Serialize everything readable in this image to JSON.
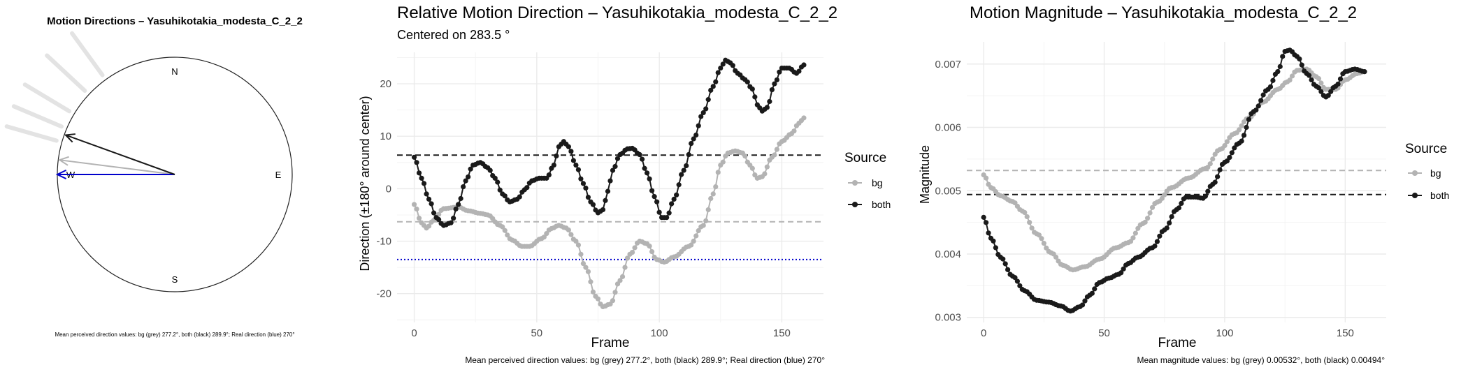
{
  "colors": {
    "bg": "#b3b3b3",
    "both": "#1a1a1a",
    "real": "#0000cc",
    "grid": "#ebebeb",
    "grid_minor": "#f4f4f4"
  },
  "panel1": {
    "title": "Motion Directions – Yasuhikotakia_modesta_C_2_2",
    "compass": {
      "N": "N",
      "E": "E",
      "S": "S",
      "W": "W"
    },
    "caption": "Mean perceived direction values: bg (grey) 277.2°, both (black) 289.9°; Real direction (blue) 270°",
    "arrows": {
      "bg_deg": 277.2,
      "both_deg": 289.9,
      "real_deg": 270
    },
    "fan_deg": [
      286,
      293,
      301,
      313,
      324
    ]
  },
  "panel2": {
    "title": "Relative Motion Direction – Yasuhikotakia_modesta_C_2_2",
    "subtitle": "Centered on  283.5 °",
    "xlabel": "Frame",
    "ylabel": "Direction (±180° around center)",
    "legend_title": "Source",
    "legend": [
      "bg",
      "both"
    ],
    "caption": "Mean perceived direction values: bg (grey) 277.2°, both (black) 289.9°; Real direction (blue) 270°"
  },
  "panel3": {
    "title": "Motion Magnitude – Yasuhikotakia_modesta_C_2_2",
    "xlabel": "Frame",
    "ylabel": "Magnitude",
    "legend_title": "Source",
    "legend": [
      "bg",
      "both"
    ],
    "caption": "Mean magnitude values: bg (grey) 0.00532°, both (black) 0.00494°"
  },
  "chart_data": [
    {
      "type": "line",
      "title": "Relative Motion Direction – Yasuhikotakia_modesta_C_2_2",
      "xlabel": "Frame",
      "ylabel": "Direction (±180° around center)",
      "xlim": [
        -7,
        167
      ],
      "ylim": [
        -25.5,
        26
      ],
      "xticks": [
        0,
        50,
        100,
        150
      ],
      "yticks": [
        -20,
        -10,
        0,
        10,
        20
      ],
      "hlines": [
        {
          "series": "both",
          "y": 6.4,
          "style": "dashed"
        },
        {
          "series": "bg",
          "y": -6.3,
          "style": "dashed"
        },
        {
          "series": "real",
          "y": -13.5,
          "style": "dotted"
        }
      ],
      "series": [
        {
          "name": "bg",
          "points": [
            [
              0,
              -3
            ],
            [
              3,
              -6.5
            ],
            [
              5,
              -7.5
            ],
            [
              8,
              -6
            ],
            [
              12,
              -3.8
            ],
            [
              18,
              -3.5
            ],
            [
              22,
              -4.2
            ],
            [
              27,
              -4.7
            ],
            [
              30,
              -5
            ],
            [
              35,
              -7
            ],
            [
              40,
              -9.8
            ],
            [
              44,
              -11
            ],
            [
              47,
              -11
            ],
            [
              52,
              -9.5
            ],
            [
              56,
              -7.6
            ],
            [
              59,
              -7
            ],
            [
              62,
              -7.5
            ],
            [
              66,
              -10
            ],
            [
              70,
              -15
            ],
            [
              74,
              -20.5
            ],
            [
              77,
              -22.5
            ],
            [
              80,
              -22
            ],
            [
              84,
              -17.5
            ],
            [
              88,
              -12.5
            ],
            [
              92,
              -10
            ],
            [
              95,
              -10.5
            ],
            [
              99,
              -13.5
            ],
            [
              102,
              -14
            ],
            [
              106,
              -13
            ],
            [
              112,
              -11
            ],
            [
              118,
              -7
            ],
            [
              122,
              -1
            ],
            [
              125,
              4.5
            ],
            [
              128,
              6.8
            ],
            [
              131,
              7.2
            ],
            [
              134,
              6.8
            ],
            [
              137,
              4.5
            ],
            [
              140,
              2
            ],
            [
              142,
              2.3
            ],
            [
              146,
              6
            ],
            [
              150,
              9
            ],
            [
              154,
              10.5
            ],
            [
              157,
              12.5
            ],
            [
              159,
              13.5
            ]
          ]
        },
        {
          "name": "both",
          "points": [
            [
              0,
              6
            ],
            [
              3,
              2
            ],
            [
              6,
              -2
            ],
            [
              9,
              -5.5
            ],
            [
              12,
              -7
            ],
            [
              15,
              -6.5
            ],
            [
              18,
              -3
            ],
            [
              21,
              1.5
            ],
            [
              24,
              4.5
            ],
            [
              27,
              5
            ],
            [
              30,
              4
            ],
            [
              33,
              2
            ],
            [
              36,
              -1
            ],
            [
              39,
              -2.5
            ],
            [
              42,
              -2
            ],
            [
              45,
              -0.2
            ],
            [
              48,
              1.5
            ],
            [
              51,
              2
            ],
            [
              54,
              2
            ],
            [
              57,
              4.5
            ],
            [
              59,
              8
            ],
            [
              61,
              9
            ],
            [
              63,
              8
            ],
            [
              66,
              4.5
            ],
            [
              69,
              1
            ],
            [
              72,
              -2.5
            ],
            [
              75,
              -4.6
            ],
            [
              77,
              -4
            ],
            [
              79,
              -0.5
            ],
            [
              81,
              3.5
            ],
            [
              84,
              6.5
            ],
            [
              87,
              7.6
            ],
            [
              89,
              7.7
            ],
            [
              92,
              6.5
            ],
            [
              95,
              3
            ],
            [
              98,
              -1.5
            ],
            [
              101,
              -5.5
            ],
            [
              103,
              -5.5
            ],
            [
              106,
              -2
            ],
            [
              110,
              3.5
            ],
            [
              114,
              9.5
            ],
            [
              118,
              14.5
            ],
            [
              122,
              19.5
            ],
            [
              125,
              23
            ],
            [
              127,
              24.5
            ],
            [
              129,
              24
            ],
            [
              132,
              22
            ],
            [
              135,
              20.8
            ],
            [
              138,
              19
            ],
            [
              140,
              16
            ],
            [
              142,
              14.8
            ],
            [
              144,
              15.5
            ],
            [
              147,
              20
            ],
            [
              150,
              23
            ],
            [
              153,
              23
            ],
            [
              156,
              22
            ],
            [
              159,
              23.6
            ]
          ]
        }
      ]
    },
    {
      "type": "line",
      "title": "Motion Magnitude – Yasuhikotakia_modesta_C_2_2",
      "xlabel": "Frame",
      "ylabel": "Magnitude",
      "xlim": [
        -7,
        167
      ],
      "ylim": [
        0.00292,
        0.00735
      ],
      "xticks": [
        0,
        50,
        100,
        150
      ],
      "yticks": [
        0.003,
        0.004,
        0.005,
        0.006,
        0.007
      ],
      "hlines": [
        {
          "series": "bg",
          "y": 0.00532,
          "style": "dashed"
        },
        {
          "series": "both",
          "y": 0.00494,
          "style": "dashed"
        }
      ],
      "series": [
        {
          "name": "bg",
          "points": [
            [
              0,
              0.00525
            ],
            [
              3,
              0.00505
            ],
            [
              7,
              0.00492
            ],
            [
              12,
              0.00483
            ],
            [
              16,
              0.00468
            ],
            [
              22,
              0.00432
            ],
            [
              28,
              0.00402
            ],
            [
              33,
              0.00382
            ],
            [
              37,
              0.00375
            ],
            [
              42,
              0.0038
            ],
            [
              48,
              0.00392
            ],
            [
              55,
              0.0041
            ],
            [
              60,
              0.00418
            ],
            [
              66,
              0.00448
            ],
            [
              72,
              0.00482
            ],
            [
              78,
              0.00505
            ],
            [
              85,
              0.0052
            ],
            [
              92,
              0.00535
            ],
            [
              98,
              0.00565
            ],
            [
              104,
              0.0059
            ],
            [
              110,
              0.00615
            ],
            [
              116,
              0.0064
            ],
            [
              122,
              0.0066
            ],
            [
              126,
              0.00672
            ],
            [
              130,
              0.0069
            ],
            [
              134,
              0.00692
            ],
            [
              138,
              0.0068
            ],
            [
              142,
              0.0066
            ],
            [
              146,
              0.0066
            ],
            [
              150,
              0.00675
            ],
            [
              155,
              0.00685
            ],
            [
              158,
              0.00688
            ]
          ]
        },
        {
          "name": "both",
          "points": [
            [
              0,
              0.00458
            ],
            [
              3,
              0.00425
            ],
            [
              7,
              0.00395
            ],
            [
              12,
              0.00365
            ],
            [
              17,
              0.00342
            ],
            [
              22,
              0.00327
            ],
            [
              27,
              0.00324
            ],
            [
              32,
              0.00318
            ],
            [
              36,
              0.0031
            ],
            [
              40,
              0.00317
            ],
            [
              44,
              0.00335
            ],
            [
              48,
              0.00355
            ],
            [
              52,
              0.00362
            ],
            [
              56,
              0.00368
            ],
            [
              60,
              0.00385
            ],
            [
              64,
              0.00395
            ],
            [
              70,
              0.0041
            ],
            [
              75,
              0.00438
            ],
            [
              80,
              0.0047
            ],
            [
              84,
              0.0049
            ],
            [
              88,
              0.0049
            ],
            [
              91,
              0.00488
            ],
            [
              95,
              0.0051
            ],
            [
              100,
              0.00545
            ],
            [
              106,
              0.00575
            ],
            [
              112,
              0.00625
            ],
            [
              118,
              0.0066
            ],
            [
              122,
              0.00688
            ],
            [
              125,
              0.0072
            ],
            [
              127,
              0.00722
            ],
            [
              130,
              0.00712
            ],
            [
              134,
              0.00685
            ],
            [
              138,
              0.00665
            ],
            [
              142,
              0.00648
            ],
            [
              146,
              0.00665
            ],
            [
              150,
              0.00688
            ],
            [
              154,
              0.00692
            ],
            [
              158,
              0.00688
            ]
          ]
        }
      ]
    }
  ]
}
